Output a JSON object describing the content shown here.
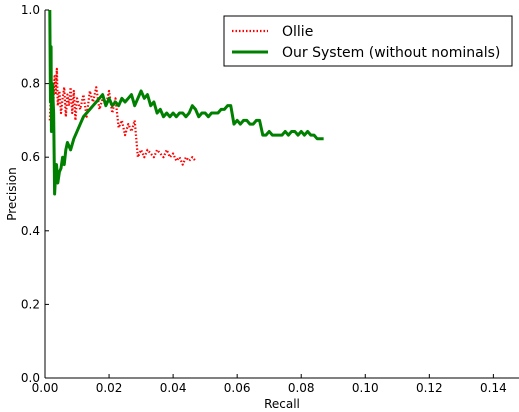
{
  "chart_data": {
    "type": "line",
    "title": "",
    "xlabel": "Recall",
    "ylabel": "Precision",
    "xlim": [
      0.0,
      0.148
    ],
    "ylim": [
      0.0,
      1.0
    ],
    "xticks": [
      "0.00",
      "0.02",
      "0.04",
      "0.06",
      "0.08",
      "0.10",
      "0.12",
      "0.14"
    ],
    "yticks": [
      "0.0",
      "0.2",
      "0.4",
      "0.6",
      "0.8",
      "1.0"
    ],
    "grid": false,
    "legend_position": "top-right",
    "series": [
      {
        "name": "Ollie",
        "style": "dotted",
        "color": "#ff0000",
        "x": [
          0.0015,
          0.002,
          0.0025,
          0.003,
          0.0033,
          0.0037,
          0.004,
          0.0045,
          0.005,
          0.0055,
          0.006,
          0.0065,
          0.007,
          0.0075,
          0.008,
          0.0085,
          0.009,
          0.0095,
          0.01,
          0.011,
          0.012,
          0.013,
          0.014,
          0.015,
          0.016,
          0.017,
          0.018,
          0.019,
          0.02,
          0.021,
          0.022,
          0.023,
          0.024,
          0.025,
          0.026,
          0.027,
          0.028,
          0.029,
          0.03,
          0.031,
          0.032,
          0.033,
          0.034,
          0.035,
          0.036,
          0.037,
          0.038,
          0.039,
          0.04,
          0.041,
          0.042,
          0.043,
          0.044,
          0.045,
          0.046,
          0.047
        ],
        "y": [
          0.7,
          0.8,
          0.73,
          0.82,
          0.77,
          0.84,
          0.74,
          0.78,
          0.72,
          0.76,
          0.79,
          0.71,
          0.77,
          0.74,
          0.79,
          0.72,
          0.78,
          0.7,
          0.76,
          0.73,
          0.77,
          0.71,
          0.78,
          0.75,
          0.79,
          0.73,
          0.76,
          0.74,
          0.78,
          0.72,
          0.76,
          0.68,
          0.7,
          0.66,
          0.69,
          0.67,
          0.7,
          0.6,
          0.62,
          0.6,
          0.62,
          0.61,
          0.6,
          0.62,
          0.61,
          0.6,
          0.62,
          0.6,
          0.61,
          0.59,
          0.6,
          0.58,
          0.6,
          0.59,
          0.6,
          0.59
        ]
      },
      {
        "name": "Our System (without nominals)",
        "style": "solid",
        "color": "#008000",
        "x": [
          0.0015,
          0.0017,
          0.0019,
          0.002,
          0.0023,
          0.0027,
          0.003,
          0.0033,
          0.0036,
          0.004,
          0.0045,
          0.005,
          0.0055,
          0.006,
          0.0065,
          0.007,
          0.008,
          0.009,
          0.01,
          0.011,
          0.012,
          0.013,
          0.014,
          0.015,
          0.016,
          0.017,
          0.018,
          0.019,
          0.02,
          0.021,
          0.022,
          0.023,
          0.024,
          0.025,
          0.026,
          0.027,
          0.028,
          0.029,
          0.03,
          0.031,
          0.032,
          0.033,
          0.034,
          0.035,
          0.036,
          0.037,
          0.038,
          0.039,
          0.04,
          0.041,
          0.042,
          0.043,
          0.044,
          0.045,
          0.046,
          0.047,
          0.048,
          0.049,
          0.05,
          0.051,
          0.052,
          0.053,
          0.054,
          0.055,
          0.056,
          0.057,
          0.058,
          0.059,
          0.06,
          0.061,
          0.062,
          0.063,
          0.064,
          0.065,
          0.066,
          0.067,
          0.068,
          0.069,
          0.07,
          0.071,
          0.072,
          0.073,
          0.074,
          0.075,
          0.076,
          0.077,
          0.078,
          0.079,
          0.08,
          0.081,
          0.082,
          0.083,
          0.084,
          0.085,
          0.086,
          0.087
        ],
        "y": [
          1.0,
          0.75,
          0.9,
          0.67,
          0.8,
          0.72,
          0.5,
          0.55,
          0.58,
          0.53,
          0.56,
          0.57,
          0.6,
          0.58,
          0.62,
          0.64,
          0.62,
          0.65,
          0.67,
          0.69,
          0.71,
          0.72,
          0.73,
          0.74,
          0.75,
          0.76,
          0.77,
          0.74,
          0.76,
          0.74,
          0.75,
          0.74,
          0.76,
          0.75,
          0.76,
          0.77,
          0.74,
          0.76,
          0.78,
          0.76,
          0.77,
          0.74,
          0.75,
          0.72,
          0.73,
          0.71,
          0.72,
          0.71,
          0.72,
          0.71,
          0.72,
          0.72,
          0.71,
          0.72,
          0.74,
          0.73,
          0.71,
          0.72,
          0.72,
          0.71,
          0.72,
          0.72,
          0.72,
          0.73,
          0.73,
          0.74,
          0.74,
          0.69,
          0.7,
          0.69,
          0.7,
          0.7,
          0.69,
          0.69,
          0.7,
          0.7,
          0.66,
          0.66,
          0.67,
          0.66,
          0.66,
          0.66,
          0.66,
          0.67,
          0.66,
          0.67,
          0.67,
          0.66,
          0.67,
          0.66,
          0.67,
          0.66,
          0.66,
          0.65,
          0.65,
          0.65
        ]
      }
    ]
  }
}
